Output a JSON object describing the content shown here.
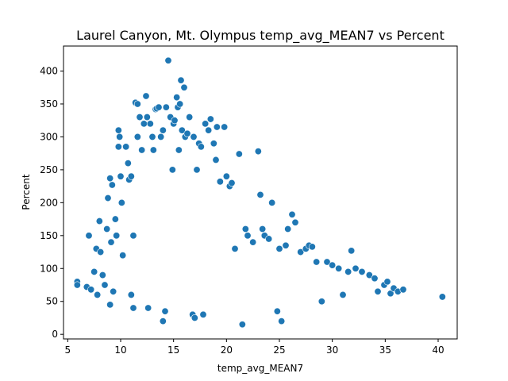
{
  "chart_data": {
    "type": "scatter",
    "title": "Laurel Canyon, Mt. Olympus temp_avg_MEAN7 vs Percent",
    "xlabel": "temp_avg_MEAN7",
    "ylabel": "Percent",
    "xlim": [
      4.6,
      41.8
    ],
    "ylim": [
      -7,
      438
    ],
    "xticks": [
      5,
      10,
      15,
      20,
      25,
      30,
      35,
      40
    ],
    "yticks": [
      0,
      50,
      100,
      150,
      200,
      250,
      300,
      350,
      400
    ],
    "marker_color": "#1f77b4",
    "series": [
      {
        "name": "Percent",
        "points": [
          [
            5.9,
            80
          ],
          [
            5.9,
            75
          ],
          [
            6.8,
            72
          ],
          [
            7.0,
            150
          ],
          [
            7.2,
            68
          ],
          [
            7.5,
            95
          ],
          [
            7.7,
            130
          ],
          [
            7.8,
            60
          ],
          [
            8.0,
            172
          ],
          [
            8.1,
            125
          ],
          [
            8.3,
            90
          ],
          [
            8.5,
            75
          ],
          [
            8.7,
            160
          ],
          [
            8.8,
            207
          ],
          [
            9.0,
            237
          ],
          [
            9.0,
            45
          ],
          [
            9.1,
            140
          ],
          [
            9.2,
            227
          ],
          [
            9.3,
            65
          ],
          [
            9.5,
            175
          ],
          [
            9.6,
            150
          ],
          [
            9.8,
            285
          ],
          [
            9.8,
            310
          ],
          [
            9.9,
            300
          ],
          [
            10.0,
            240
          ],
          [
            10.1,
            200
          ],
          [
            10.2,
            120
          ],
          [
            10.5,
            285
          ],
          [
            10.7,
            260
          ],
          [
            10.8,
            235
          ],
          [
            11.0,
            240
          ],
          [
            11.0,
            60
          ],
          [
            11.2,
            150
          ],
          [
            11.2,
            40
          ],
          [
            11.4,
            352
          ],
          [
            11.6,
            350
          ],
          [
            11.6,
            300
          ],
          [
            11.8,
            330
          ],
          [
            12.0,
            280
          ],
          [
            12.2,
            320
          ],
          [
            12.4,
            362
          ],
          [
            12.5,
            330
          ],
          [
            12.6,
            40
          ],
          [
            12.8,
            320
          ],
          [
            13.0,
            300
          ],
          [
            13.1,
            280
          ],
          [
            13.3,
            342
          ],
          [
            13.4,
            343
          ],
          [
            13.6,
            345
          ],
          [
            13.8,
            300
          ],
          [
            14.0,
            310
          ],
          [
            14.0,
            20
          ],
          [
            14.2,
            35
          ],
          [
            14.3,
            345
          ],
          [
            14.5,
            416
          ],
          [
            14.7,
            330
          ],
          [
            14.9,
            250
          ],
          [
            15.0,
            320
          ],
          [
            15.1,
            325
          ],
          [
            15.3,
            360
          ],
          [
            15.4,
            345
          ],
          [
            15.5,
            280
          ],
          [
            15.6,
            350
          ],
          [
            15.7,
            386
          ],
          [
            15.8,
            310
          ],
          [
            16.0,
            375
          ],
          [
            16.1,
            300
          ],
          [
            16.3,
            305
          ],
          [
            16.5,
            330
          ],
          [
            16.8,
            30
          ],
          [
            16.9,
            300
          ],
          [
            17.0,
            25
          ],
          [
            17.2,
            250
          ],
          [
            17.4,
            290
          ],
          [
            17.6,
            285
          ],
          [
            17.8,
            30
          ],
          [
            18.0,
            320
          ],
          [
            18.3,
            310
          ],
          [
            18.5,
            327
          ],
          [
            18.8,
            290
          ],
          [
            19.0,
            265
          ],
          [
            19.1,
            315
          ],
          [
            19.4,
            232
          ],
          [
            19.8,
            315
          ],
          [
            20.0,
            240
          ],
          [
            20.3,
            225
          ],
          [
            20.5,
            230
          ],
          [
            20.8,
            130
          ],
          [
            21.2,
            274
          ],
          [
            21.5,
            15
          ],
          [
            21.8,
            160
          ],
          [
            22.0,
            150
          ],
          [
            22.5,
            140
          ],
          [
            23.0,
            278
          ],
          [
            23.2,
            212
          ],
          [
            23.4,
            160
          ],
          [
            23.6,
            150
          ],
          [
            24.0,
            145
          ],
          [
            24.3,
            200
          ],
          [
            24.8,
            35
          ],
          [
            25.0,
            130
          ],
          [
            25.2,
            20
          ],
          [
            25.6,
            135
          ],
          [
            25.8,
            160
          ],
          [
            26.2,
            182
          ],
          [
            26.5,
            170
          ],
          [
            27.0,
            125
          ],
          [
            27.5,
            130
          ],
          [
            27.8,
            135
          ],
          [
            28.1,
            133
          ],
          [
            28.5,
            110
          ],
          [
            29.0,
            50
          ],
          [
            29.5,
            110
          ],
          [
            30.0,
            105
          ],
          [
            30.6,
            100
          ],
          [
            31.0,
            60
          ],
          [
            31.5,
            95
          ],
          [
            31.8,
            127
          ],
          [
            32.2,
            100
          ],
          [
            32.8,
            95
          ],
          [
            33.5,
            90
          ],
          [
            34.0,
            85
          ],
          [
            34.3,
            65
          ],
          [
            34.9,
            75
          ],
          [
            35.2,
            80
          ],
          [
            35.5,
            62
          ],
          [
            35.8,
            70
          ],
          [
            36.2,
            65
          ],
          [
            36.7,
            68
          ],
          [
            40.4,
            57
          ]
        ]
      }
    ]
  }
}
